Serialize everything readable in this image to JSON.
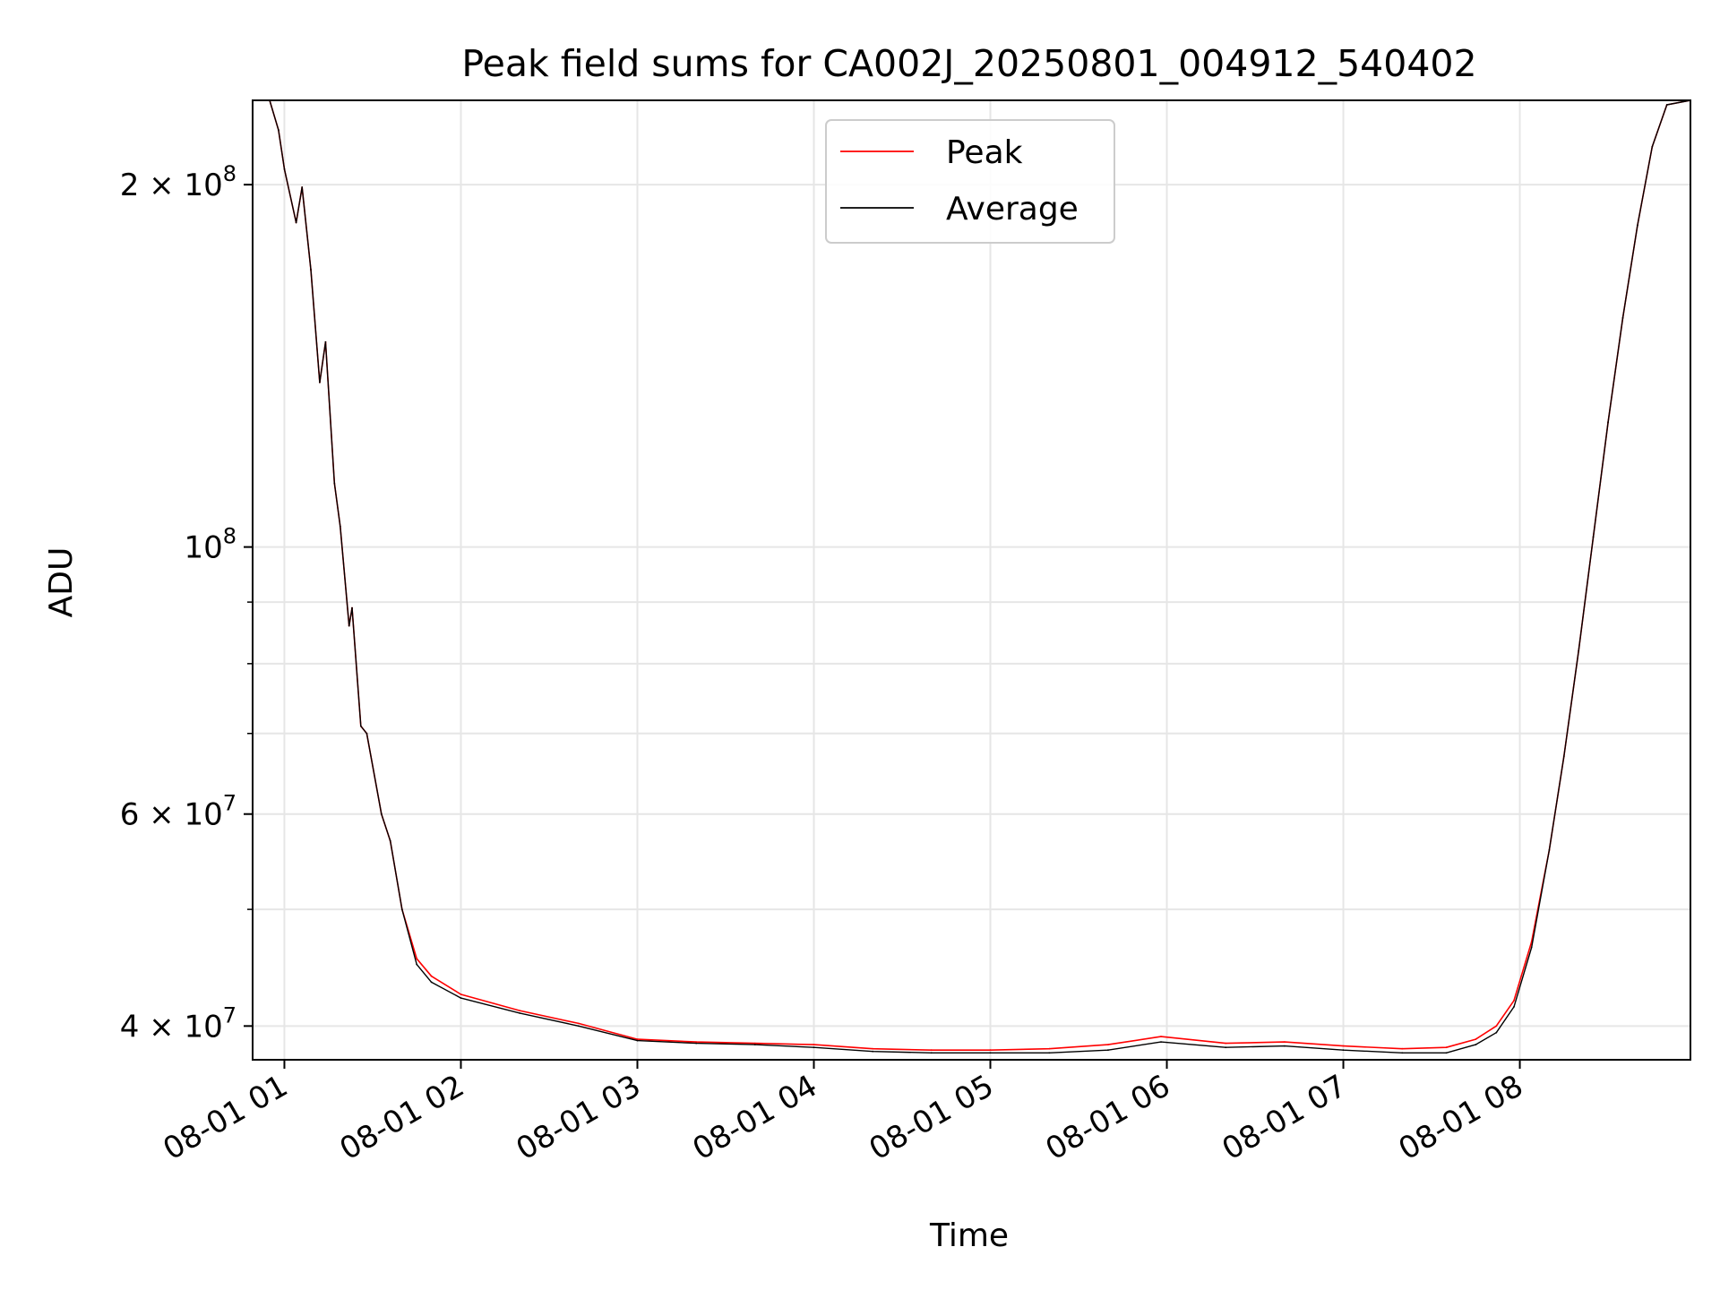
{
  "chart_data": {
    "type": "line",
    "title": "Peak field sums for CA002J_20250801_004912_540402",
    "xlabel": "Time",
    "ylabel": "ADU",
    "y_scale": "log",
    "ylim": [
      37500000,
      235000000
    ],
    "xlim": [
      "2025-08-01T00:49:12",
      "2025-08-01T08:58:00"
    ],
    "grid": true,
    "legend_position": "upper center",
    "x_ticks": [
      {
        "label": "08-01 01",
        "value": "2025-08-01T01:00:00"
      },
      {
        "label": "08-01 02",
        "value": "2025-08-01T02:00:00"
      },
      {
        "label": "08-01 03",
        "value": "2025-08-01T03:00:00"
      },
      {
        "label": "08-01 04",
        "value": "2025-08-01T04:00:00"
      },
      {
        "label": "08-01 05",
        "value": "2025-08-01T05:00:00"
      },
      {
        "label": "08-01 06",
        "value": "2025-08-01T06:00:00"
      },
      {
        "label": "08-01 07",
        "value": "2025-08-01T07:00:00"
      },
      {
        "label": "08-01 08",
        "value": "2025-08-01T08:00:00"
      }
    ],
    "y_ticks": [
      {
        "mantissa": "4 × 10",
        "exp": "7",
        "value": 40000000
      },
      {
        "mantissa": "6 × 10",
        "exp": "7",
        "value": 60000000
      },
      {
        "mantissa": "10",
        "exp": "8",
        "value": 100000000
      },
      {
        "mantissa": "2 × 10",
        "exp": "8",
        "value": 200000000
      }
    ],
    "y_minor_ticks": [
      50000000,
      70000000,
      80000000,
      90000000
    ],
    "series": [
      {
        "name": "Peak",
        "color": "#ff0000",
        "x": [
          "2025-08-01T00:49:12",
          "2025-08-01T00:55:00",
          "2025-08-01T00:58:00",
          "2025-08-01T01:00:00",
          "2025-08-01T01:04:00",
          "2025-08-01T01:06:00",
          "2025-08-01T01:09:00",
          "2025-08-01T01:12:00",
          "2025-08-01T01:14:00",
          "2025-08-01T01:17:00",
          "2025-08-01T01:19:00",
          "2025-08-01T01:22:00",
          "2025-08-01T01:23:00",
          "2025-08-01T01:26:00",
          "2025-08-01T01:28:00",
          "2025-08-01T01:33:00",
          "2025-08-01T01:36:00",
          "2025-08-01T01:40:00",
          "2025-08-01T01:45:00",
          "2025-08-01T01:50:00",
          "2025-08-01T02:00:00",
          "2025-08-01T02:20:00",
          "2025-08-01T02:40:00",
          "2025-08-01T03:00:00",
          "2025-08-01T03:20:00",
          "2025-08-01T03:40:00",
          "2025-08-01T04:00:00",
          "2025-08-01T04:20:00",
          "2025-08-01T04:40:00",
          "2025-08-01T05:00:00",
          "2025-08-01T05:20:00",
          "2025-08-01T05:40:00",
          "2025-08-01T05:58:00",
          "2025-08-01T06:20:00",
          "2025-08-01T06:40:00",
          "2025-08-01T07:00:00",
          "2025-08-01T07:20:00",
          "2025-08-01T07:35:00",
          "2025-08-01T07:45:00",
          "2025-08-01T07:52:00",
          "2025-08-01T07:58:00",
          "2025-08-01T08:04:00",
          "2025-08-01T08:10:00",
          "2025-08-01T08:15:00",
          "2025-08-01T08:20:00",
          "2025-08-01T08:25:00",
          "2025-08-01T08:30:00",
          "2025-08-01T08:35:00",
          "2025-08-01T08:40:00",
          "2025-08-01T08:45:00",
          "2025-08-01T08:50:00",
          "2025-08-01T08:58:00"
        ],
        "values": [
          235000000,
          235000000,
          222000000,
          206000000,
          186000000,
          199000000,
          170000000,
          137000000,
          148000000,
          113000000,
          104000000,
          86000000,
          89000000,
          71000000,
          70000000,
          60000000,
          57000000,
          50000000,
          45500000,
          44000000,
          42500000,
          41200000,
          40200000,
          39000000,
          38800000,
          38700000,
          38600000,
          38300000,
          38200000,
          38200000,
          38300000,
          38600000,
          39200000,
          38700000,
          38800000,
          38500000,
          38300000,
          38400000,
          39000000,
          40000000,
          42000000,
          47000000,
          56000000,
          67000000,
          82000000,
          102000000,
          127000000,
          155000000,
          185000000,
          215000000,
          233000000,
          235000000
        ]
      },
      {
        "name": "Average",
        "color": "#000000",
        "x": [
          "2025-08-01T00:49:12",
          "2025-08-01T00:55:00",
          "2025-08-01T00:58:00",
          "2025-08-01T01:00:00",
          "2025-08-01T01:04:00",
          "2025-08-01T01:06:00",
          "2025-08-01T01:09:00",
          "2025-08-01T01:12:00",
          "2025-08-01T01:14:00",
          "2025-08-01T01:17:00",
          "2025-08-01T01:19:00",
          "2025-08-01T01:22:00",
          "2025-08-01T01:23:00",
          "2025-08-01T01:26:00",
          "2025-08-01T01:28:00",
          "2025-08-01T01:33:00",
          "2025-08-01T01:36:00",
          "2025-08-01T01:40:00",
          "2025-08-01T01:45:00",
          "2025-08-01T01:50:00",
          "2025-08-01T02:00:00",
          "2025-08-01T02:20:00",
          "2025-08-01T02:40:00",
          "2025-08-01T03:00:00",
          "2025-08-01T03:20:00",
          "2025-08-01T03:40:00",
          "2025-08-01T04:00:00",
          "2025-08-01T04:20:00",
          "2025-08-01T04:40:00",
          "2025-08-01T05:00:00",
          "2025-08-01T05:20:00",
          "2025-08-01T05:40:00",
          "2025-08-01T05:58:00",
          "2025-08-01T06:20:00",
          "2025-08-01T06:40:00",
          "2025-08-01T07:00:00",
          "2025-08-01T07:20:00",
          "2025-08-01T07:35:00",
          "2025-08-01T07:45:00",
          "2025-08-01T07:52:00",
          "2025-08-01T07:58:00",
          "2025-08-01T08:04:00",
          "2025-08-01T08:10:00",
          "2025-08-01T08:15:00",
          "2025-08-01T08:20:00",
          "2025-08-01T08:25:00",
          "2025-08-01T08:30:00",
          "2025-08-01T08:35:00",
          "2025-08-01T08:40:00",
          "2025-08-01T08:45:00",
          "2025-08-01T08:50:00",
          "2025-08-01T08:58:00"
        ],
        "values": [
          235000000,
          235000000,
          222000000,
          206000000,
          186000000,
          199000000,
          170000000,
          137000000,
          148000000,
          113000000,
          104000000,
          86000000,
          89000000,
          71000000,
          70000000,
          60000000,
          57000000,
          50000000,
          45000000,
          43500000,
          42200000,
          41000000,
          40000000,
          38900000,
          38700000,
          38600000,
          38400000,
          38100000,
          38000000,
          38000000,
          38000000,
          38200000,
          38800000,
          38400000,
          38500000,
          38200000,
          38000000,
          38000000,
          38600000,
          39500000,
          41500000,
          46500000,
          56000000,
          67000000,
          82000000,
          102000000,
          127000000,
          155000000,
          185000000,
          215000000,
          233000000,
          235000000
        ]
      }
    ]
  }
}
